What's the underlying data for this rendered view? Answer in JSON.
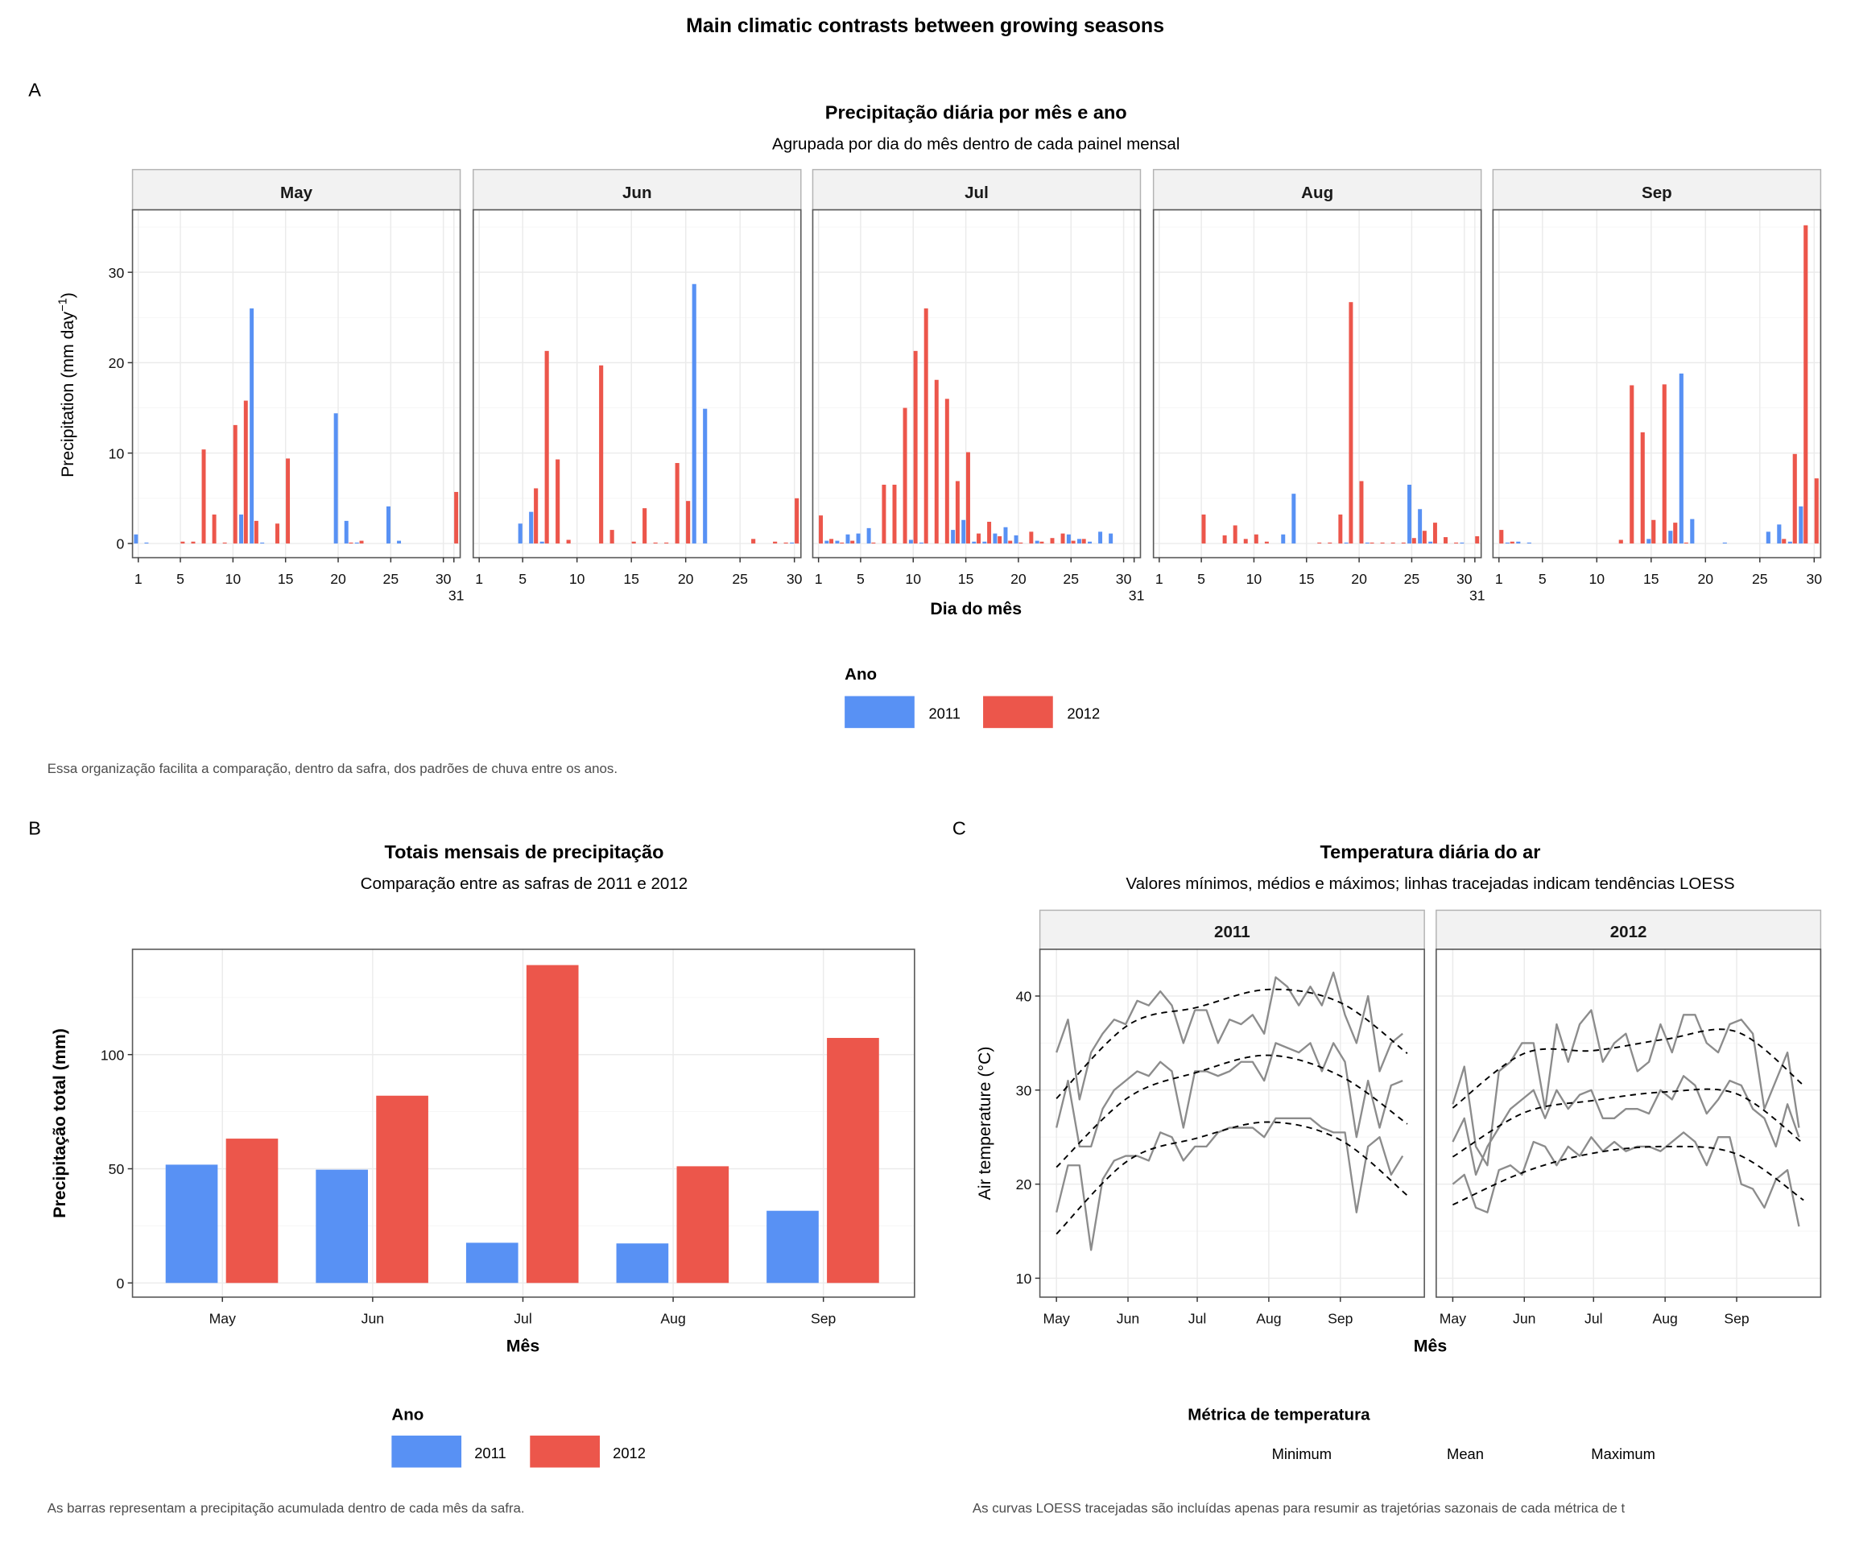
{
  "figure": {
    "title": "Main climatic contrasts between growing seasons"
  },
  "panel_a": {
    "tag": "A",
    "title": "Precipitação diária por mês e ano",
    "subtitle": "Agrupada por dia do mês dentro de cada painel mensal",
    "y_title": "Precipitation (mm day",
    "y_title_sup": "−1",
    "y_title_close": ")",
    "x_title": "Dia do mês",
    "legend": {
      "title": "Ano",
      "items": [
        {
          "label": "2011",
          "color": "#5891F4"
        },
        {
          "label": "2012",
          "color": "#EC564B"
        }
      ]
    },
    "caption": "Essa organização facilita a comparação, dentro da safra, dos padrões de chuva entre os anos."
  },
  "panel_b": {
    "tag": "B",
    "title": "Totais mensais de precipitação",
    "subtitle": "Comparação entre as safras de 2011 e 2012",
    "y_title": "Precipitação total (mm)",
    "x_title": "Mês",
    "legend": {
      "title": "Ano",
      "items": [
        {
          "label": "2011",
          "color": "#5891F4"
        },
        {
          "label": "2012",
          "color": "#EC564B"
        }
      ]
    },
    "caption": "As barras representam a precipitação acumulada dentro de cada mês da safra."
  },
  "panel_c": {
    "tag": "C",
    "title": "Temperatura diária do ar",
    "subtitle": "Valores mínimos, médios e máximos; linhas tracejadas indicam tendências LOESS",
    "y_title": "Air temperature (°C)",
    "x_title": "Mês",
    "legend": {
      "title": "Métrica de temperatura",
      "items": [
        "Minimum",
        "Mean",
        "Maximum"
      ]
    },
    "caption": "As curvas LOESS tracejadas são incluídas apenas para resumir as trajetórias sazonais de cada métrica de t"
  },
  "chart_data": [
    {
      "type": "bar",
      "title": "Precipitação diária por mês e ano",
      "xlabel": "Dia do mês",
      "ylabel": "Precipitation (mm day−1)",
      "ylim": [
        0,
        36
      ],
      "yticks": [
        0,
        10,
        20,
        30
      ],
      "grid": true,
      "legend_position": "bottom",
      "series_colors": {
        "2011": "#5891F4",
        "2012": "#EC564B"
      },
      "facets": [
        {
          "month": "May",
          "days": 31,
          "2011": [
            [
              1,
              1.0
            ],
            [
              2,
              0.1
            ],
            [
              11,
              3.2
            ],
            [
              12,
              26.0
            ],
            [
              13,
              0.1
            ],
            [
              20,
              14.4
            ],
            [
              21,
              2.5
            ],
            [
              22,
              0.1
            ],
            [
              25,
              4.1
            ],
            [
              26,
              0.3
            ]
          ],
          "2012": [
            [
              5,
              0.2
            ],
            [
              6,
              0.2
            ],
            [
              7,
              10.4
            ],
            [
              8,
              3.2
            ],
            [
              9,
              0.1
            ],
            [
              10,
              13.1
            ],
            [
              11,
              15.8
            ],
            [
              12,
              2.5
            ],
            [
              14,
              2.2
            ],
            [
              15,
              9.4
            ],
            [
              21,
              0.1
            ],
            [
              22,
              0.3
            ],
            [
              31,
              5.7
            ]
          ]
        },
        {
          "month": "Jun",
          "days": 30,
          "2011": [
            [
              5,
              2.2
            ],
            [
              6,
              3.5
            ],
            [
              7,
              0.2
            ],
            [
              21,
              28.7
            ],
            [
              22,
              14.9
            ],
            [
              30,
              0.1
            ]
          ],
          "2012": [
            [
              6,
              6.1
            ],
            [
              7,
              21.3
            ],
            [
              8,
              9.3
            ],
            [
              9,
              0.4
            ],
            [
              12,
              19.7
            ],
            [
              13,
              1.5
            ],
            [
              15,
              0.2
            ],
            [
              16,
              3.9
            ],
            [
              17,
              0.1
            ],
            [
              18,
              0.1
            ],
            [
              19,
              8.9
            ],
            [
              20,
              4.7
            ],
            [
              26,
              0.5
            ],
            [
              28,
              0.2
            ],
            [
              29,
              0.1
            ],
            [
              30,
              5.0
            ]
          ]
        },
        {
          "month": "Jul",
          "days": 31,
          "2011": [
            [
              2,
              0.3
            ],
            [
              3,
              0.3
            ],
            [
              4,
              1.0
            ],
            [
              5,
              1.1
            ],
            [
              6,
              1.7
            ],
            [
              10,
              0.4
            ],
            [
              11,
              0.1
            ],
            [
              14,
              1.5
            ],
            [
              15,
              2.6
            ],
            [
              16,
              0.2
            ],
            [
              17,
              0.2
            ],
            [
              18,
              1.1
            ],
            [
              19,
              1.8
            ],
            [
              20,
              0.9
            ],
            [
              22,
              0.3
            ],
            [
              25,
              1.0
            ],
            [
              26,
              0.5
            ],
            [
              27,
              0.2
            ],
            [
              28,
              1.3
            ],
            [
              29,
              1.1
            ]
          ],
          "2012": [
            [
              1,
              3.1
            ],
            [
              2,
              0.5
            ],
            [
              3,
              0.1
            ],
            [
              4,
              0.3
            ],
            [
              6,
              0.1
            ],
            [
              7,
              6.5
            ],
            [
              8,
              6.5
            ],
            [
              9,
              15.0
            ],
            [
              10,
              21.3
            ],
            [
              11,
              26.0
            ],
            [
              12,
              18.1
            ],
            [
              13,
              16.0
            ],
            [
              14,
              6.9
            ],
            [
              15,
              10.1
            ],
            [
              16,
              1.1
            ],
            [
              17,
              2.4
            ],
            [
              18,
              0.8
            ],
            [
              19,
              0.3
            ],
            [
              20,
              0.1
            ],
            [
              21,
              1.3
            ],
            [
              22,
              0.2
            ],
            [
              23,
              0.6
            ],
            [
              24,
              1.1
            ],
            [
              25,
              0.3
            ],
            [
              26,
              0.5
            ]
          ]
        },
        {
          "month": "Aug",
          "days": 31,
          "2011": [
            [
              13,
              1.0
            ],
            [
              14,
              5.5
            ],
            [
              19,
              0.1
            ],
            [
              21,
              0.1
            ],
            [
              25,
              6.5
            ],
            [
              26,
              3.8
            ],
            [
              27,
              0.2
            ],
            [
              30,
              0.1
            ]
          ],
          "2012": [
            [
              5,
              3.2
            ],
            [
              7,
              0.9
            ],
            [
              8,
              2.0
            ],
            [
              9,
              0.5
            ],
            [
              10,
              1.0
            ],
            [
              11,
              0.2
            ],
            [
              16,
              0.1
            ],
            [
              17,
              0.1
            ],
            [
              18,
              3.2
            ],
            [
              19,
              26.7
            ],
            [
              20,
              6.9
            ],
            [
              21,
              0.1
            ],
            [
              22,
              0.1
            ],
            [
              23,
              0.1
            ],
            [
              24,
              0.1
            ],
            [
              25,
              0.6
            ],
            [
              26,
              1.4
            ],
            [
              27,
              2.3
            ],
            [
              28,
              0.7
            ],
            [
              29,
              0.1
            ],
            [
              31,
              0.8
            ]
          ]
        },
        {
          "month": "Sep",
          "days": 30,
          "2011": [
            [
              2,
              0.1
            ],
            [
              3,
              0.2
            ],
            [
              4,
              0.1
            ],
            [
              15,
              0.5
            ],
            [
              17,
              1.4
            ],
            [
              18,
              18.8
            ],
            [
              19,
              2.7
            ],
            [
              22,
              0.1
            ],
            [
              26,
              1.3
            ],
            [
              27,
              2.1
            ],
            [
              28,
              0.2
            ],
            [
              29,
              4.1
            ]
          ],
          "2012": [
            [
              1,
              1.5
            ],
            [
              2,
              0.2
            ],
            [
              12,
              0.4
            ],
            [
              13,
              17.5
            ],
            [
              14,
              12.3
            ],
            [
              15,
              2.6
            ],
            [
              16,
              17.6
            ],
            [
              17,
              2.3
            ],
            [
              18,
              0.1
            ],
            [
              27,
              0.5
            ],
            [
              28,
              9.9
            ],
            [
              29,
              35.2
            ],
            [
              30,
              7.2
            ]
          ]
        }
      ]
    },
    {
      "type": "bar",
      "title": "Totais mensais de precipitação",
      "subtitle": "Comparação entre as safras de 2011 e 2012",
      "xlabel": "Mês",
      "ylabel": "Precipitação total (mm)",
      "categories": [
        "May",
        "Jun",
        "Jul",
        "Aug",
        "Sep"
      ],
      "series": [
        {
          "name": "2011",
          "color": "#5891F4",
          "values": [
            51.8,
            49.6,
            17.6,
            17.3,
            31.6
          ]
        },
        {
          "name": "2012",
          "color": "#EC564B",
          "values": [
            63.2,
            82.0,
            139.2,
            51.1,
            107.3
          ]
        }
      ],
      "ylim": [
        0,
        146
      ],
      "yticks": [
        0,
        50,
        100
      ],
      "grid": true,
      "legend_position": "bottom"
    },
    {
      "type": "line",
      "title": "Temperatura diária do ar",
      "xlabel": "Mês",
      "ylabel": "Air temperature (°C)",
      "ylim": [
        8,
        45
      ],
      "yticks": [
        10,
        20,
        30,
        40
      ],
      "xticks": [
        "May",
        "Jun",
        "Jul",
        "Aug",
        "Sep"
      ],
      "grid": true,
      "line_color": "#8C8C8C",
      "trend_style": "dashed",
      "x": [
        "05-01",
        "05-06",
        "05-11",
        "05-16",
        "05-21",
        "05-26",
        "05-31",
        "06-05",
        "06-10",
        "06-15",
        "06-20",
        "06-25",
        "06-30",
        "07-05",
        "07-10",
        "07-15",
        "07-20",
        "07-25",
        "07-30",
        "08-04",
        "08-09",
        "08-14",
        "08-19",
        "08-24",
        "08-29",
        "09-03",
        "09-08",
        "09-13",
        "09-18",
        "09-23",
        "09-28"
      ],
      "trend_x": [
        "05-01",
        "06-01",
        "07-01",
        "08-01",
        "09-01",
        "09-30"
      ],
      "facets": [
        {
          "year": "2011",
          "series": [
            {
              "name": "Minimum",
              "values": [
                17,
                22,
                22,
                13,
                20.5,
                22.5,
                23,
                23,
                22.5,
                25.5,
                25,
                22.5,
                24,
                24,
                25.5,
                26,
                26,
                26,
                25,
                27,
                27,
                27,
                27,
                26,
                25.5,
                25.5,
                17,
                24,
                25,
                21,
                23
              ],
              "trend": [
                14.7,
                22.5,
                24.9,
                26.6,
                24.7,
                18.8
              ]
            },
            {
              "name": "Mean",
              "values": [
                26,
                31,
                24,
                24,
                28,
                30,
                31,
                32,
                31.5,
                33,
                32,
                26,
                32,
                32,
                31.5,
                32,
                33,
                33,
                31,
                35,
                34.5,
                34,
                35,
                32,
                35,
                33,
                25,
                31,
                26,
                30.5,
                31
              ],
              "trend": [
                21.8,
                29.2,
                31.9,
                33.7,
                31.5,
                26.4
              ]
            },
            {
              "name": "Maximum",
              "values": [
                34,
                37.5,
                29,
                34,
                36,
                37.5,
                37,
                39.5,
                39,
                40.5,
                39,
                35,
                38.5,
                38.5,
                35,
                37.5,
                37,
                38,
                36,
                42,
                41,
                39,
                41,
                39,
                42.5,
                38,
                35,
                40,
                32,
                35,
                36
              ],
              "trend": [
                29.1,
                36.9,
                38.8,
                40.7,
                39.3,
                33.9
              ]
            }
          ]
        },
        {
          "year": "2012",
          "series": [
            {
              "name": "Minimum",
              "values": [
                20,
                21,
                17.5,
                17,
                21.5,
                22,
                21,
                24.5,
                24,
                22,
                24,
                23,
                25,
                23.5,
                24.5,
                23.5,
                24,
                24,
                23.5,
                24.5,
                25.5,
                24.5,
                22,
                25,
                25,
                20,
                19.5,
                17.5,
                20.5,
                21.5,
                15.5
              ],
              "trend": [
                17.8,
                21.3,
                23.3,
                24.0,
                23.2,
                18.3
              ]
            },
            {
              "name": "Mean",
              "values": [
                24.5,
                27,
                21,
                24,
                26,
                28,
                29,
                30,
                27,
                30,
                28,
                29.5,
                30,
                27,
                27,
                28,
                28,
                27.5,
                30,
                29,
                31.5,
                30.5,
                27.5,
                29,
                31,
                30.5,
                28,
                27,
                24,
                28.5,
                25
              ],
              "trend": [
                22.9,
                27.6,
                28.9,
                29.8,
                29.6,
                24.3
              ]
            },
            {
              "name": "Maximum",
              "values": [
                28.5,
                32.5,
                24,
                22,
                32,
                33,
                35,
                35,
                28,
                37,
                33,
                37,
                38.5,
                33,
                35,
                36,
                32,
                33,
                37,
                34,
                38,
                38,
                35,
                34,
                37,
                37.5,
                36,
                28,
                31,
                34,
                26
              ],
              "trend": [
                28.1,
                33.9,
                34.2,
                35.4,
                36.2,
                30.5
              ]
            }
          ]
        }
      ]
    }
  ]
}
